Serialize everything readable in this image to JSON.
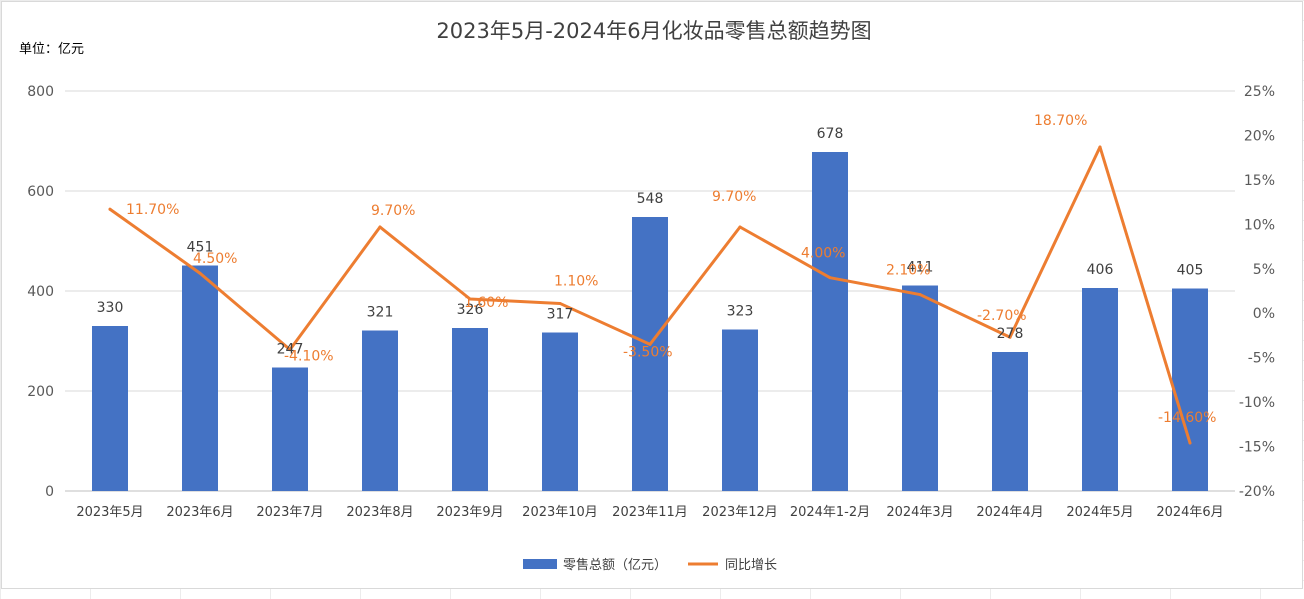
{
  "chart_data": {
    "type": "bar",
    "title": "2023年5月-2024年6月化妆品零售总额趋势图",
    "unit_label": "单位：亿元",
    "categories": [
      "2023年5月",
      "2023年6月",
      "2023年7月",
      "2023年8月",
      "2023年9月",
      "2023年10月",
      "2023年11月",
      "2023年12月",
      "2024年1-2月",
      "2024年3月",
      "2024年4月",
      "2024年5月",
      "2024年6月"
    ],
    "series": [
      {
        "name": "零售总额（亿元）",
        "type": "bar",
        "axis": "left",
        "color": "#4472c4",
        "values": [
          330,
          451,
          247,
          321,
          326,
          317,
          548,
          323,
          678,
          411,
          278,
          406,
          405
        ],
        "labels": [
          "330",
          "451",
          "247",
          "321",
          "326",
          "317",
          "548",
          "323",
          "678",
          "411",
          "278",
          "406",
          "405"
        ]
      },
      {
        "name": "同比增长",
        "type": "line",
        "axis": "right",
        "color": "#ed7d31",
        "values": [
          11.7,
          4.5,
          -4.1,
          9.7,
          1.6,
          1.1,
          -3.5,
          9.7,
          4.0,
          2.1,
          -2.7,
          18.7,
          -14.6
        ],
        "labels": [
          "11.70%",
          "4.50%",
          "-4.10%",
          "9.70%",
          "1.60%",
          "1.10%",
          "-3.50%",
          "9.70%",
          "4.00%",
          "2.10%",
          "-2.70%",
          "18.70%",
          "-14.60%"
        ]
      }
    ],
    "y_left": {
      "ylim": [
        0,
        800
      ],
      "ticks": [
        "0",
        "200",
        "400",
        "600",
        "800"
      ],
      "tick_values": [
        0,
        200,
        400,
        600,
        800
      ]
    },
    "y_right": {
      "ylim": [
        -20,
        25
      ],
      "ticks": [
        "-20%",
        "-15%",
        "-10%",
        "-5%",
        "0%",
        "5%",
        "10%",
        "15%",
        "20%",
        "25%"
      ],
      "tick_values": [
        -20,
        -15,
        -10,
        -5,
        0,
        5,
        10,
        15,
        20,
        25
      ]
    },
    "grid": true,
    "legend_position": "bottom"
  }
}
